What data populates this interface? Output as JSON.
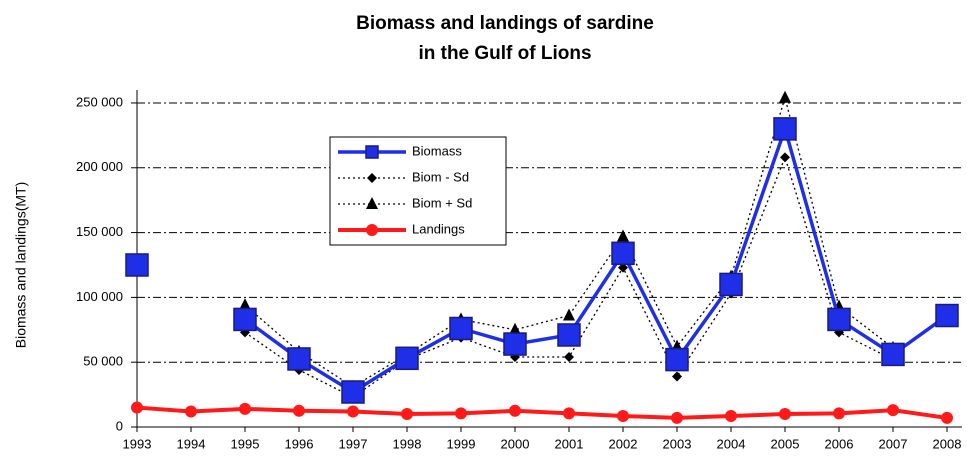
{
  "chart_data": {
    "type": "line",
    "title": [
      "Biomass and landings of sardine",
      "in the Gulf of Lions"
    ],
    "y_label": "Biomass and landings(MT)",
    "categories": [
      "1993",
      "1994",
      "1995",
      "1996",
      "1997",
      "1998",
      "1999",
      "2000",
      "2001",
      "2002",
      "2003",
      "2004",
      "2005",
      "2006",
      "2007",
      "2008"
    ],
    "series": [
      {
        "name": "Biomass",
        "color": "#1f2fe8",
        "marker": "square",
        "dash": "solid",
        "values": [
          125000,
          null,
          83000,
          52500,
          27000,
          53000,
          76000,
          64000,
          71000,
          134000,
          52000,
          110000,
          230000,
          83000,
          56000,
          86000
        ]
      },
      {
        "name": "Biom - Sd",
        "color": "#000000",
        "marker": "diamond",
        "dash": "dotted",
        "values": [
          null,
          null,
          73000,
          44000,
          23000,
          52000,
          69000,
          54000,
          54000,
          123000,
          39000,
          103000,
          208000,
          73000,
          52000,
          null
        ]
      },
      {
        "name": "Biom + Sd",
        "color": "#000000",
        "marker": "triangle",
        "dash": "dotted",
        "values": [
          null,
          null,
          94000,
          58000,
          31000,
          56000,
          83000,
          75000,
          86000,
          147000,
          62000,
          116000,
          254000,
          93000,
          61000,
          null
        ]
      },
      {
        "name": "Landings",
        "color": "#ff1a1a",
        "marker": "circle",
        "dash": "solid",
        "values": [
          15000,
          12000,
          14000,
          12500,
          12000,
          10000,
          10500,
          12500,
          10500,
          8500,
          7000,
          8500,
          10000,
          10500,
          13000,
          7000
        ]
      }
    ],
    "ylim": [
      0,
      260000
    ],
    "yticks": [
      0,
      {
        "value": 50000,
        "label": "50 000"
      },
      {
        "value": 100000,
        "label": "100 000"
      },
      {
        "value": 150000,
        "label": "150 000"
      },
      {
        "value": 200000,
        "label": "200 000"
      },
      {
        "value": 250000,
        "label": "250 000"
      }
    ],
    "grid": true
  }
}
